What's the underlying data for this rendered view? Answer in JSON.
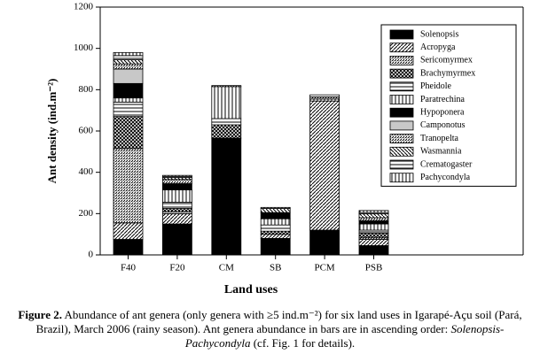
{
  "chart_data": {
    "type": "stacked-bar",
    "y_label": "Ant density (ind.m⁻²)",
    "x_label": "Land uses",
    "categories": [
      "F40",
      "F20",
      "CM",
      "SB",
      "PCM",
      "PSB"
    ],
    "ylim": [
      0,
      1200
    ],
    "yticks": [
      0,
      200,
      400,
      600,
      800,
      1000,
      1200
    ],
    "grid": false,
    "legend": "top-right",
    "series": [
      {
        "name": "Solenopsis",
        "color": "#000000",
        "pattern": "solid",
        "values": [
          75,
          150,
          565,
          80,
          120,
          45
        ]
      },
      {
        "name": "Acropyga",
        "color": "#000000",
        "pattern": "diag-light",
        "values": [
          80,
          50,
          0,
          20,
          625,
          30
        ]
      },
      {
        "name": "Sericomyrmex",
        "color": "#000000",
        "pattern": "diag-dense",
        "values": [
          360,
          10,
          0,
          0,
          0,
          10
        ]
      },
      {
        "name": "Brachymyrmex",
        "color": "#000000",
        "pattern": "cross",
        "values": [
          155,
          15,
          65,
          15,
          0,
          20
        ]
      },
      {
        "name": "Pheidole",
        "color": "#000000",
        "pattern": "horizontal",
        "values": [
          70,
          30,
          30,
          30,
          0,
          15
        ]
      },
      {
        "name": "Paratrechina",
        "color": "#000000",
        "pattern": "vertical",
        "values": [
          20,
          60,
          155,
          30,
          10,
          30
        ]
      },
      {
        "name": "Hypoponera",
        "color": "#000000",
        "pattern": "solid",
        "values": [
          70,
          30,
          0,
          30,
          0,
          15
        ]
      },
      {
        "name": "Camponotus",
        "color": "#c8c8c8",
        "pattern": "solid",
        "values": [
          70,
          0,
          0,
          0,
          0,
          0
        ]
      },
      {
        "name": "Tranopelta",
        "color": "#000000",
        "pattern": "diag-dense",
        "values": [
          25,
          20,
          5,
          0,
          10,
          15
        ]
      },
      {
        "name": "Wasmannia",
        "color": "#000000",
        "pattern": "diag-rev",
        "values": [
          20,
          10,
          0,
          20,
          0,
          20
        ]
      },
      {
        "name": "Crematogaster",
        "color": "#000000",
        "pattern": "horizontal",
        "values": [
          20,
          5,
          0,
          0,
          10,
          5
        ]
      },
      {
        "name": "Pachycondyla",
        "color": "#000000",
        "pattern": "vertical",
        "values": [
          15,
          5,
          0,
          5,
          0,
          10
        ]
      }
    ]
  },
  "caption": {
    "label": "Figure 2.",
    "text": "Abundance of ant genera (only genera with ≥5 ind.m⁻²) for six land uses in Igarapé-Açu soil (Pará, Brazil), March 2006 (rainy season). Ant genera abundance in bars are in ascending order:",
    "italic": "Solenopsis-Pachycondyla",
    "end": "(cf. Fig. 1 for details)."
  }
}
